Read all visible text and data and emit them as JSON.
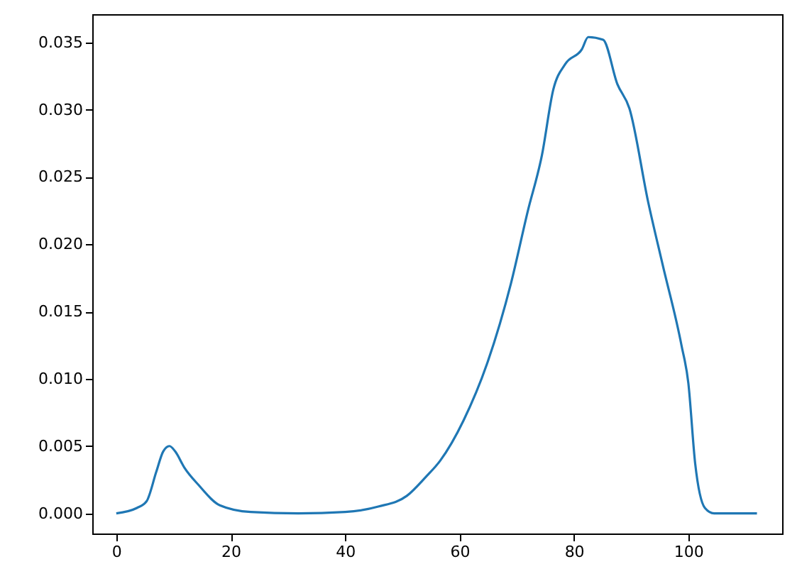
{
  "chart_data": {
    "type": "line",
    "x": [
      0,
      3.6,
      5.3,
      7,
      8.2,
      9.3,
      10.3,
      11.9,
      14.4,
      18.1,
      23.5,
      31.8,
      40,
      45.8,
      50.8,
      54.1,
      56.6,
      60.7,
      64.8,
      69,
      71.9,
      74.4,
      76.4,
      78.5,
      81.4,
      82.5,
      85.1,
      87.6,
      89.7,
      93,
      95.5,
      98.8,
      100,
      101.2,
      102.9,
      104.5,
      112
    ],
    "series": [
      {
        "color": "#1f77b4",
        "values": [
          0.0,
          0.0004,
          0.0009,
          0.0031,
          0.0046,
          0.005,
          0.0046,
          0.0034,
          0.0021,
          0.0006,
          0.0001,
          0.0,
          0.0001,
          0.0005,
          0.0013,
          0.0027,
          0.0039,
          0.0069,
          0.0111,
          0.0171,
          0.0224,
          0.0266,
          0.0315,
          0.0334,
          0.0345,
          0.0354,
          0.0352,
          0.0319,
          0.0301,
          0.0231,
          0.0185,
          0.0125,
          0.0097,
          0.0037,
          0.0004,
          0.0,
          0.0
        ]
      }
    ],
    "xlim": [
      -4.2,
      116.4
    ],
    "ylim": [
      -0.0015,
      0.0371
    ],
    "xticks": [
      0,
      20,
      40,
      60,
      80,
      100
    ],
    "yticks": [
      {
        "value": 0,
        "label": "0.000"
      },
      {
        "value": 0.005,
        "label": "0.005"
      },
      {
        "value": 0.01,
        "label": "0.010"
      },
      {
        "value": 0.015,
        "label": "0.015"
      },
      {
        "value": 0.02,
        "label": "0.020"
      },
      {
        "value": 0.025,
        "label": "0.025"
      },
      {
        "value": 0.03,
        "label": "0.030"
      },
      {
        "value": 0.035,
        "label": "0.035"
      }
    ],
    "grid": false
  }
}
